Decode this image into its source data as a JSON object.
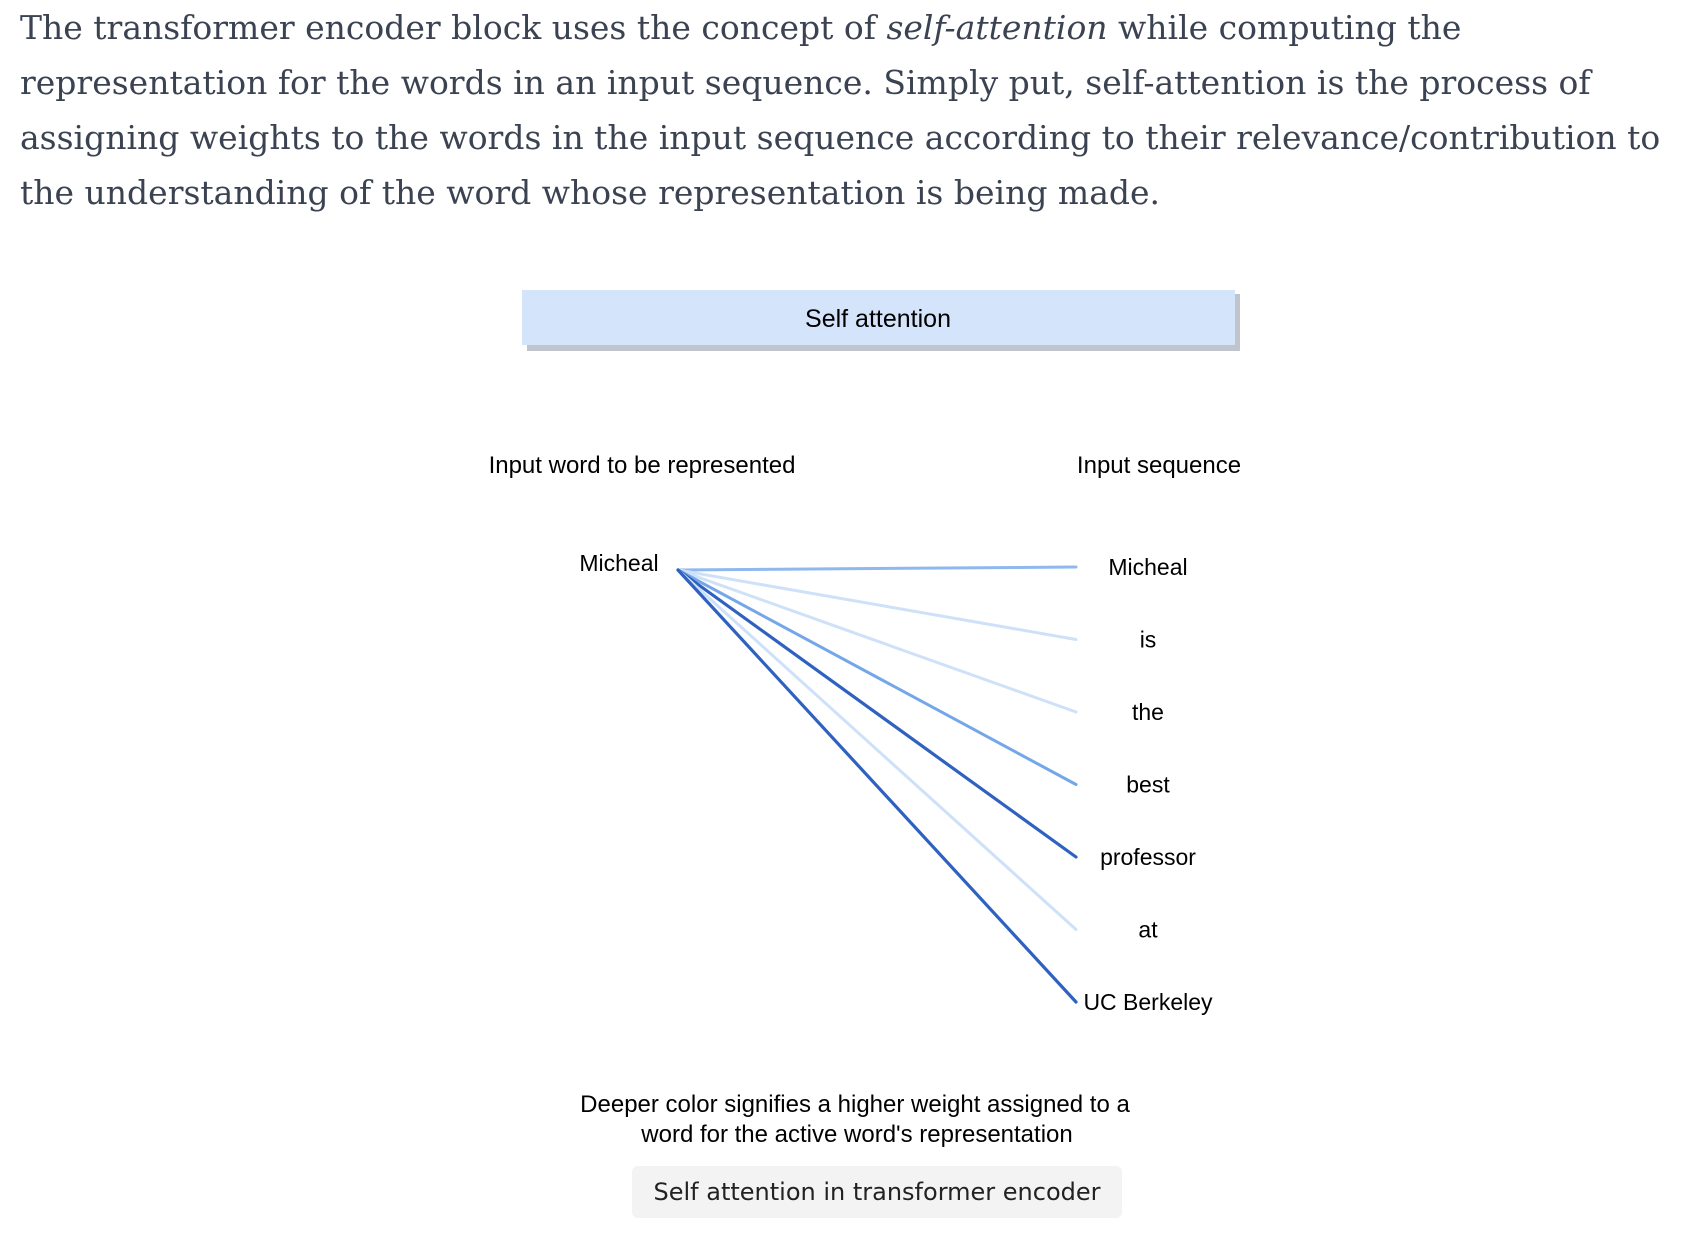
{
  "intro": {
    "before": "The transformer encoder block uses the concept of ",
    "emphasis": "self-attention",
    "after": " while computing the representation for the words in an input sequence. Simply put, self-attention is the process of assigning weights to the words in the input sequence according to their relevance/contribution to the understanding of the word whose representation is being made."
  },
  "diagram": {
    "header": "Self attention",
    "left_label": "Input word to be represented",
    "right_label": "Input sequence",
    "source_word": "Micheal",
    "sequence": [
      {
        "word": "Micheal",
        "weight": "medium",
        "color": "#8fb8ee"
      },
      {
        "word": "is",
        "weight": "low",
        "color": "#cfe1f8"
      },
      {
        "word": "the",
        "weight": "low",
        "color": "#cfe1f8"
      },
      {
        "word": "best",
        "weight": "medium",
        "color": "#74a7e9"
      },
      {
        "word": "professor",
        "weight": "high",
        "color": "#2f62c0"
      },
      {
        "word": "at",
        "weight": "low",
        "color": "#cfe1f8"
      },
      {
        "word": "UC Berkeley",
        "weight": "high",
        "color": "#2f62c0"
      }
    ],
    "note_line1": "Deeper color signifies a higher weight assigned to a",
    "note_line2": "word for the active word's representation",
    "colors": {
      "header_fill": "#d3e4fb",
      "header_shadow": "#c0c4cc"
    }
  },
  "caption": "Self attention in transformer encoder"
}
